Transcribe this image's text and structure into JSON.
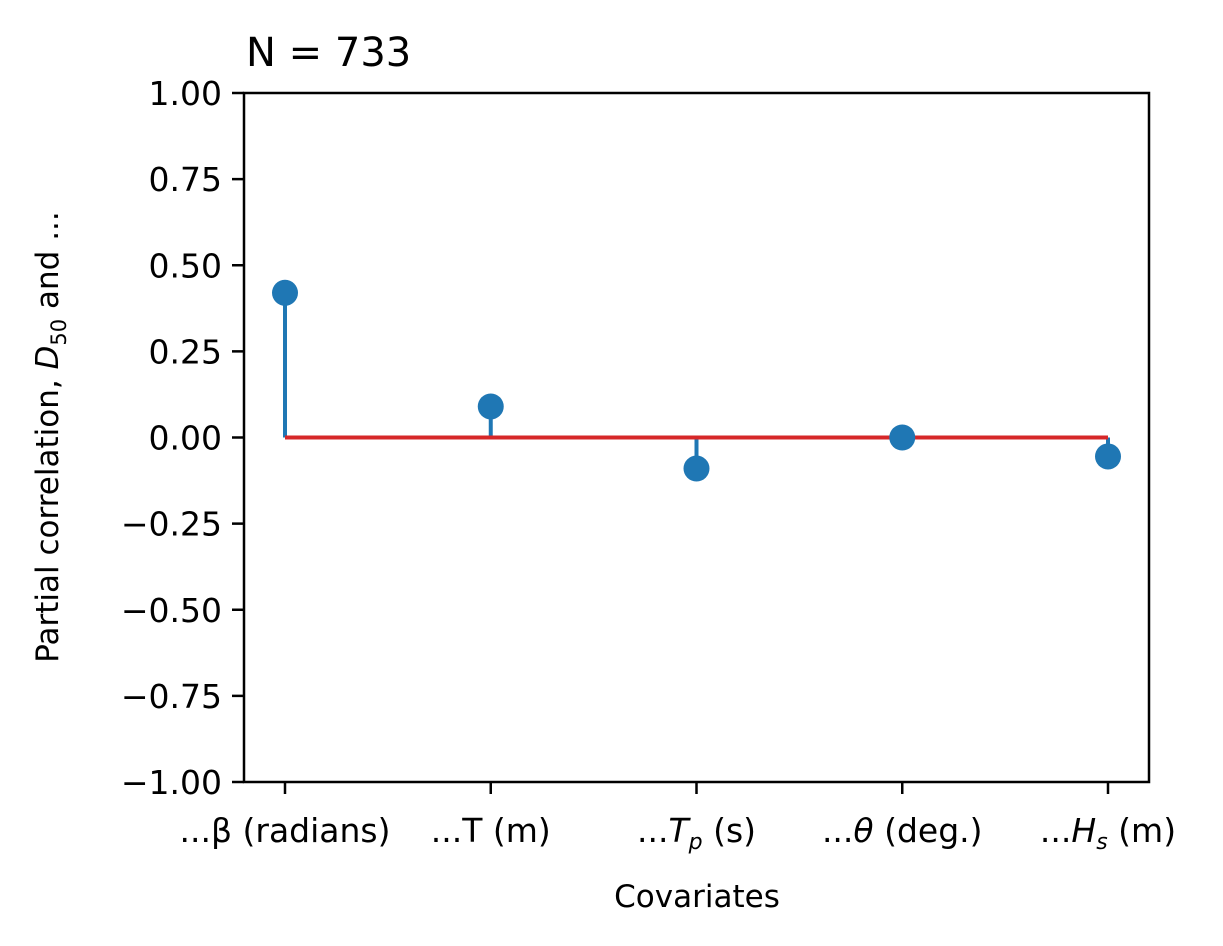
{
  "chart_data": {
    "type": "stem",
    "title": "N = 733",
    "xlabel": "Covariates",
    "ylabel": {
      "prefix": "Partial correlation, ",
      "symbol": "D",
      "subscript": "50",
      "suffix": " and ..."
    },
    "ylim": [
      -1.0,
      1.0
    ],
    "y_ticks": [
      "1.00",
      "0.75",
      "0.50",
      "0.25",
      "0.00",
      "−0.25",
      "−0.50",
      "−0.75",
      "−1.00"
    ],
    "y_tick_values": [
      1.0,
      0.75,
      0.5,
      0.25,
      0.0,
      -0.25,
      -0.5,
      -0.75,
      -1.0
    ],
    "categories": [
      {
        "prefix": "...β (radians)",
        "symbol": "",
        "sub": "",
        "suffix": ""
      },
      {
        "prefix": "...T (m)",
        "symbol": "",
        "sub": "",
        "suffix": ""
      },
      {
        "prefix": "...",
        "symbol": "T",
        "sub": "p",
        "suffix": " (s)"
      },
      {
        "prefix": "...",
        "symbol": "θ",
        "sub": "",
        "suffix": " (deg.)"
      },
      {
        "prefix": "...",
        "symbol": "H",
        "sub": "s",
        "suffix": " (m)"
      }
    ],
    "values": [
      0.42,
      0.09,
      -0.09,
      0.0,
      -0.055
    ],
    "baseline": 0.0,
    "colors": {
      "stem": "#1f77b4",
      "marker": "#1f77b4",
      "baseline": "#d62728",
      "axes": "#000000"
    }
  }
}
